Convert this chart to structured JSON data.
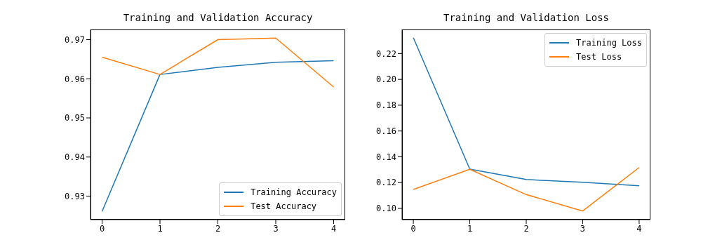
{
  "chart_data": [
    {
      "type": "line",
      "title": "Training and Validation Accuracy",
      "x": [
        0,
        1,
        2,
        3,
        4
      ],
      "series": [
        {
          "name": "Training Accuracy",
          "color": "#1f77b4",
          "values": [
            0.9261,
            0.9611,
            0.9629,
            0.9642,
            0.9646
          ]
        },
        {
          "name": "Test Accuracy",
          "color": "#ff7f0e",
          "values": [
            0.9655,
            0.9611,
            0.97,
            0.9704,
            0.9579
          ]
        }
      ],
      "xlim": [
        -0.2,
        4.2
      ],
      "xticks": [
        0,
        1,
        2,
        3,
        4
      ],
      "ylim": [
        0.924,
        0.9726
      ],
      "yticks": [
        0.93,
        0.94,
        0.95,
        0.96,
        0.97
      ],
      "grid": false,
      "legend": "bottom right",
      "marker": "none",
      "line_style": "solid"
    },
    {
      "type": "line",
      "title": "Training and Validation Loss",
      "x": [
        0,
        1,
        2,
        3,
        4
      ],
      "series": [
        {
          "name": "Training Loss",
          "color": "#1f77b4",
          "values": [
            0.2323,
            0.1305,
            0.1224,
            0.1203,
            0.1176
          ]
        },
        {
          "name": "Test Loss",
          "color": "#ff7f0e",
          "values": [
            0.1147,
            0.1303,
            0.1107,
            0.098,
            0.1317
          ]
        }
      ],
      "xlim": [
        -0.2,
        4.2
      ],
      "xticks": [
        0,
        1,
        2,
        3,
        4
      ],
      "ylim": [
        0.0913,
        0.2387
      ],
      "yticks": [
        {
          "value": 0.1,
          "label": "0.10"
        },
        0.12,
        0.14,
        0.16,
        0.18,
        {
          "value": 0.2,
          "label": "0.20"
        },
        0.22
      ],
      "grid": false,
      "legend": "top right",
      "marker": "none",
      "line_style": "solid"
    }
  ]
}
